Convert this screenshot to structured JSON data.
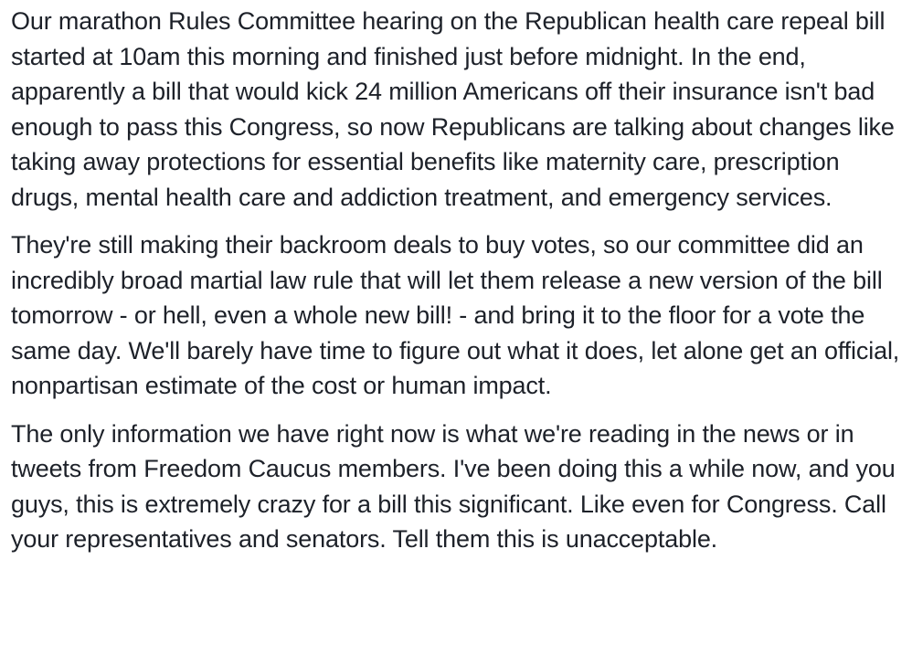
{
  "post": {
    "paragraphs": [
      "Our marathon Rules Committee hearing on the Republican health care repeal bill started at 10am this morning and finished just before midnight. In the end, apparently a bill that would kick 24 million Americans off their insurance isn't bad enough to pass this Congress, so now Republicans are talking about changes like taking away protections for essential benefits like maternity care, prescription drugs, mental health care and addiction treatment, and emergency services.",
      "They're still making their backroom deals to buy votes, so our committee did an incredibly broad martial law rule that will let them release a new version of the bill tomorrow - or hell, even a whole new bill! - and bring it to the floor for a vote the same day. We'll barely have time to figure out what it does, let alone get an official, nonpartisan estimate of the cost or human impact.",
      "The only information we have right now is what we're reading in the news or in tweets from Freedom Caucus members. I've been doing this a while now, and you guys, this is extremely crazy for a bill this significant. Like even for Congress. Call your representatives and senators. Tell them this is unacceptable."
    ]
  }
}
